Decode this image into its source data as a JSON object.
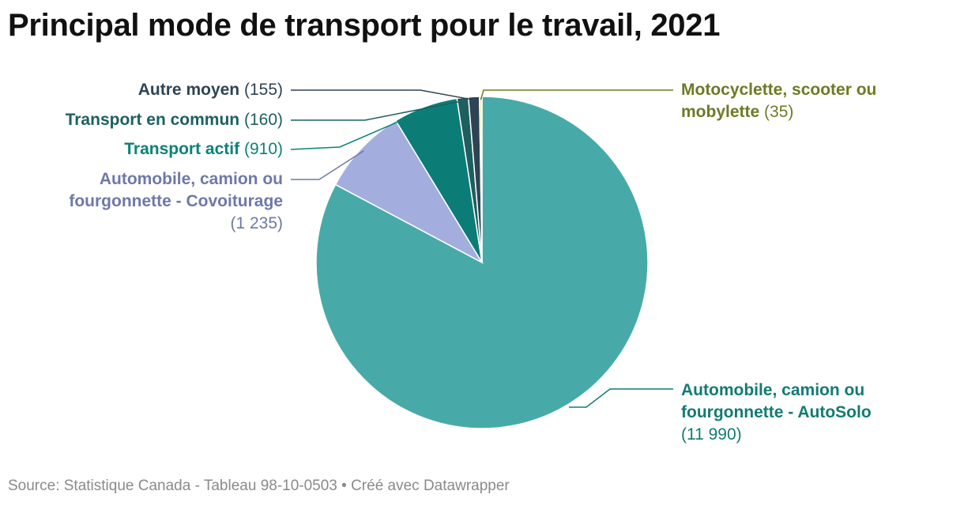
{
  "title": "Principal mode de transport pour le travail, 2021",
  "source": "Source: Statistique Canada - Tableau 98-10-0503 • Créé avec Datawrapper",
  "chart_data": {
    "type": "pie",
    "slices": [
      {
        "label": "Automobile, camion ou fourgonnette - AutoSolo",
        "value": 11990,
        "display": "(11 990)",
        "color": "#48aaa8"
      },
      {
        "label": "Automobile, camion ou fourgonnette - Covoiturage",
        "value": 1235,
        "display": "(1 235)",
        "color": "#a3aedf"
      },
      {
        "label": "Transport actif",
        "value": 910,
        "display": "(910)",
        "color": "#0b7d76"
      },
      {
        "label": "Transport en commun",
        "value": 160,
        "display": "(160)",
        "color": "#1e5e5e"
      },
      {
        "label": "Autre moyen",
        "value": 155,
        "display": "(155)",
        "color": "#2e4454"
      },
      {
        "label": "Motocyclette, scooter ou mobylette",
        "value": 35,
        "display": "(35)",
        "color": "#f0eea0"
      }
    ],
    "label_colors": {
      "Automobile, camion ou fourgonnette - AutoSolo": "#127b72",
      "Automobile, camion ou fourgonnette - Covoiturage": "#6f78a8",
      "Transport actif": "#0b8277",
      "Transport en commun": "#1d6060",
      "Autre moyen": "#2e4454",
      "Motocyclette, scooter ou mobylette": "#6f7a24"
    }
  }
}
